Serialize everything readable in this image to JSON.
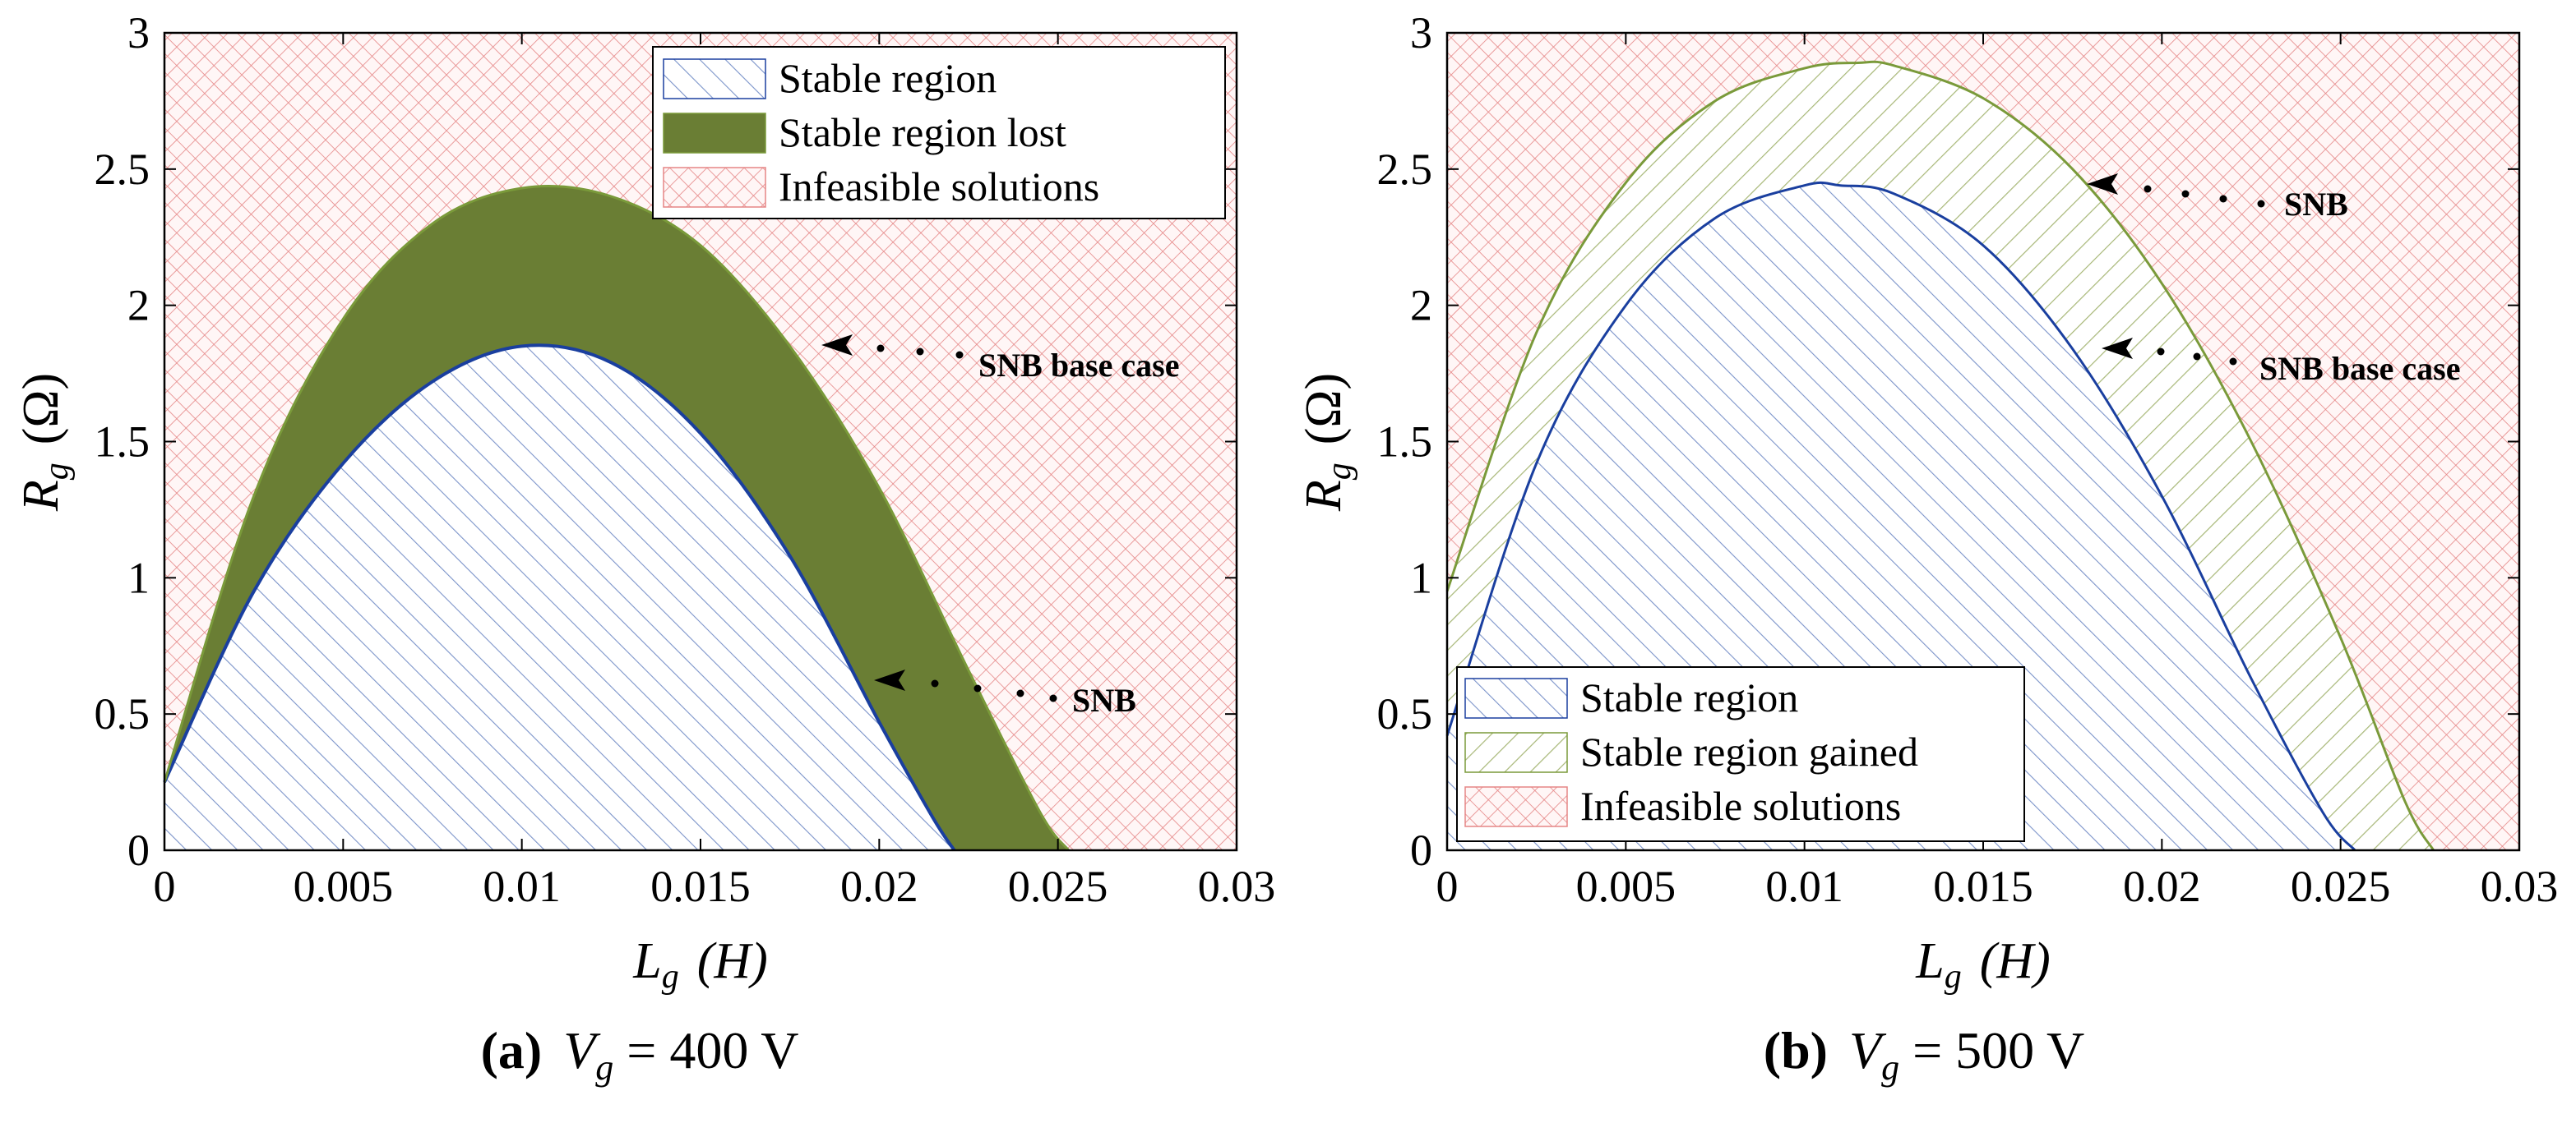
{
  "colors": {
    "stable_hatch": "#7b93c9",
    "stable_edge": "#1a3f9f",
    "lost_fill": "#6a7e34",
    "gained_hatch": "#a7b777",
    "gained_edge": "#7a9a3a",
    "infeasible_hatch": "#e58585",
    "infeasible_bg": "#fff6f6"
  },
  "chart_data": [
    {
      "id": "a",
      "type": "area",
      "caption": {
        "label": "(a)",
        "variable": "V",
        "subscript": "g",
        "equals": "= 400 V"
      },
      "xlabel": {
        "variable": "L",
        "subscript": "g",
        "unit": "(H)"
      },
      "ylabel": {
        "variable": "R",
        "subscript": "g",
        "unit": "(Ω)"
      },
      "xlim": [
        0,
        0.03
      ],
      "ylim": [
        0,
        3
      ],
      "xticks": [
        "0",
        "0.005",
        "0.01",
        "0.015",
        "0.02",
        "0.025",
        "0.03"
      ],
      "yticks": [
        "0",
        "0.5",
        "1",
        "1.5",
        "2",
        "2.5",
        "3"
      ],
      "legend": {
        "placement": "top-right",
        "entries": [
          {
            "label": "Stable region",
            "style": "stable"
          },
          {
            "label": "Stable region lost",
            "style": "lost"
          },
          {
            "label": "Infeasible solutions",
            "style": "infeasible"
          }
        ]
      },
      "series": [
        {
          "name": "Stable region",
          "style": "stable",
          "x": [
            0,
            0.0025,
            0.005,
            0.0075,
            0.01,
            0.0125,
            0.015,
            0.0175,
            0.02,
            0.0215,
            0.0221
          ],
          "y": [
            0.25,
            0.95,
            1.42,
            1.72,
            1.85,
            1.79,
            1.53,
            1.08,
            0.47,
            0.12,
            0
          ]
        },
        {
          "name": "Stable region lost",
          "style": "lost",
          "x": [
            0,
            0.0025,
            0.005,
            0.0075,
            0.01,
            0.0125,
            0.015,
            0.0175,
            0.02,
            0.0225,
            0.0245,
            0.0253
          ],
          "y": [
            0.25,
            1.3,
            1.95,
            2.3,
            2.43,
            2.4,
            2.22,
            1.85,
            1.33,
            0.66,
            0.14,
            0
          ]
        }
      ],
      "annotations": [
        {
          "text": "SNB base case",
          "x": 0.0226,
          "y": 1.78
        },
        {
          "text": "SNB",
          "x": 0.0251,
          "y": 0.55
        }
      ]
    },
    {
      "id": "b",
      "type": "area",
      "caption": {
        "label": "(b)",
        "variable": "V",
        "subscript": "g",
        "equals": "= 500 V"
      },
      "xlabel": {
        "variable": "L",
        "subscript": "g",
        "unit": "(H)"
      },
      "ylabel": {
        "variable": "R",
        "subscript": "g",
        "unit": "(Ω)"
      },
      "xlim": [
        0,
        0.03
      ],
      "ylim": [
        0,
        3
      ],
      "xticks": [
        "0",
        "0.005",
        "0.01",
        "0.015",
        "0.02",
        "0.025",
        "0.03"
      ],
      "yticks": [
        "0",
        "0.5",
        "1",
        "1.5",
        "2",
        "2.5",
        "3"
      ],
      "legend": {
        "placement": "bottom-left",
        "entries": [
          {
            "label": "Stable region",
            "style": "stable"
          },
          {
            "label": "Stable region gained",
            "style": "gained"
          },
          {
            "label": "Infeasible solutions",
            "style": "infeasible"
          }
        ]
      },
      "series": [
        {
          "name": "Stable region",
          "style": "stable",
          "x": [
            0,
            0.0025,
            0.005,
            0.0075,
            0.01,
            0.011,
            0.0125,
            0.015,
            0.0175,
            0.02,
            0.0225,
            0.0245,
            0.0254
          ],
          "y": [
            0.42,
            1.42,
            2.0,
            2.32,
            2.44,
            2.44,
            2.41,
            2.22,
            1.84,
            1.3,
            0.63,
            0.14,
            0
          ]
        },
        {
          "name": "Stable region gained",
          "style": "gained",
          "x": [
            0,
            0.0025,
            0.005,
            0.0075,
            0.01,
            0.0115,
            0.0125,
            0.015,
            0.0175,
            0.02,
            0.0225,
            0.025,
            0.0268,
            0.0276
          ],
          "y": [
            0.95,
            1.9,
            2.45,
            2.75,
            2.87,
            2.89,
            2.88,
            2.76,
            2.5,
            2.08,
            1.5,
            0.78,
            0.18,
            0
          ]
        }
      ],
      "annotations": [
        {
          "text": "SNB",
          "x": 0.0233,
          "y": 2.36
        },
        {
          "text": "SNB base case",
          "x": 0.0226,
          "y": 1.75
        }
      ]
    }
  ]
}
